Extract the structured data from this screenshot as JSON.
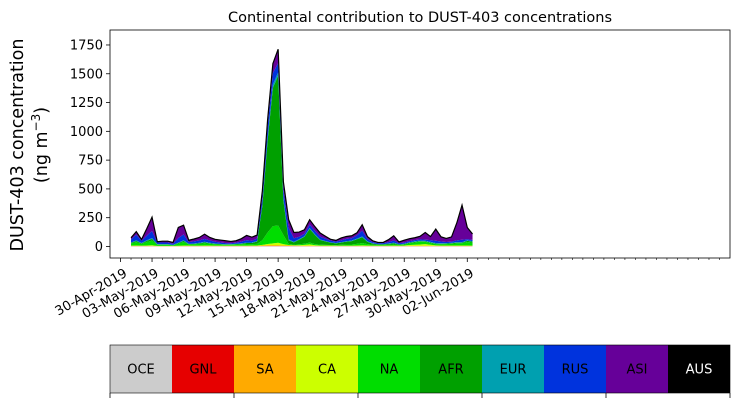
{
  "chart_data": {
    "type": "area",
    "title": "Continental contribution to DUST-403 concentrations",
    "ylabel_line1": "DUST-403 concentration",
    "ylabel_line2": "(ng m",
    "ylabel_sup": "−3",
    "ylabel_close": ")",
    "ylim": [
      -100,
      1880
    ],
    "yticks": [
      0,
      250,
      500,
      750,
      1000,
      1250,
      1500,
      1750
    ],
    "xlim": [
      -1,
      58
    ],
    "xticks": [
      0,
      3,
      6,
      9,
      12,
      15,
      18,
      21,
      24,
      27,
      30,
      33
    ],
    "xtick_labels": [
      "30-Apr-2019",
      "03-May-2019",
      "06-May-2019",
      "09-May-2019",
      "12-May-2019",
      "15-May-2019",
      "18-May-2019",
      "21-May-2019",
      "24-May-2019",
      "27-May-2019",
      "30-May-2019",
      "02-Jun-2019"
    ],
    "x": [
      1.0,
      1.5,
      2.0,
      2.5,
      3.0,
      3.5,
      4.0,
      4.5,
      5.0,
      5.5,
      6.0,
      6.5,
      7.0,
      7.5,
      8.0,
      8.5,
      9.0,
      9.5,
      10.0,
      10.5,
      11.0,
      11.5,
      12.0,
      12.5,
      13.0,
      13.5,
      14.0,
      14.5,
      15.0,
      15.5,
      16.0,
      16.5,
      17.0,
      17.5,
      18.0,
      18.5,
      19.0,
      19.5,
      20.0,
      20.5,
      21.0,
      21.5,
      22.0,
      22.5,
      23.0,
      23.5,
      24.0,
      24.5,
      25.0,
      25.5,
      26.0,
      26.5,
      27.0,
      27.5,
      28.0,
      28.5,
      29.0,
      29.5,
      30.0,
      30.5,
      31.0,
      31.5,
      32.0,
      32.5,
      33.0,
      33.5
    ],
    "series": [
      {
        "name": "OCE",
        "color": "#cccccc",
        "values": [
          2,
          2,
          2,
          2,
          2,
          1,
          1,
          1,
          1,
          1,
          2,
          2,
          2,
          2,
          2,
          2,
          2,
          2,
          2,
          2,
          2,
          2,
          2,
          2,
          2,
          3,
          3,
          3,
          3,
          3,
          3,
          3,
          2,
          2,
          2,
          2,
          2,
          2,
          2,
          2,
          2,
          2,
          2,
          2,
          2,
          2,
          2,
          2,
          2,
          2,
          2,
          2,
          2,
          2,
          2,
          2,
          2,
          2,
          2,
          2,
          2,
          2,
          2,
          2,
          2,
          2
        ]
      },
      {
        "name": "GNL",
        "color": "#e60000",
        "values": [
          1,
          1,
          1,
          1,
          1,
          1,
          1,
          1,
          1,
          1,
          1,
          1,
          1,
          1,
          1,
          1,
          1,
          1,
          1,
          1,
          1,
          1,
          1,
          1,
          1,
          1,
          1,
          1,
          1,
          1,
          1,
          1,
          1,
          1,
          1,
          1,
          1,
          1,
          1,
          1,
          1,
          1,
          1,
          1,
          1,
          1,
          1,
          1,
          1,
          1,
          1,
          1,
          1,
          1,
          1,
          1,
          1,
          1,
          1,
          1,
          1,
          1,
          1,
          1,
          1,
          1
        ]
      },
      {
        "name": "SA",
        "color": "#ffaa00",
        "values": [
          2,
          2,
          2,
          2,
          2,
          1,
          1,
          1,
          1,
          1,
          2,
          2,
          2,
          2,
          2,
          2,
          2,
          2,
          2,
          2,
          2,
          2,
          2,
          3,
          3,
          5,
          8,
          8,
          8,
          6,
          4,
          3,
          3,
          3,
          3,
          2,
          2,
          2,
          2,
          2,
          2,
          2,
          2,
          2,
          2,
          2,
          2,
          2,
          2,
          2,
          2,
          2,
          2,
          2,
          2,
          2,
          2,
          2,
          2,
          2,
          2,
          2,
          2,
          2,
          2,
          2
        ]
      },
      {
        "name": "CA",
        "color": "#ccff00",
        "values": [
          2,
          3,
          2,
          4,
          6,
          2,
          2,
          2,
          2,
          3,
          4,
          3,
          2,
          2,
          3,
          3,
          2,
          2,
          2,
          2,
          2,
          2,
          2,
          2,
          2,
          5,
          10,
          15,
          20,
          10,
          5,
          4,
          5,
          8,
          12,
          6,
          3,
          3,
          3,
          2,
          2,
          2,
          2,
          3,
          5,
          3,
          2,
          2,
          2,
          2,
          3,
          2,
          3,
          8,
          10,
          12,
          15,
          10,
          5,
          4,
          3,
          3,
          3,
          3,
          4,
          2
        ]
      },
      {
        "name": "NA",
        "color": "#00dd00",
        "values": [
          20,
          30,
          15,
          30,
          40,
          10,
          10,
          10,
          5,
          20,
          30,
          10,
          12,
          15,
          20,
          15,
          12,
          10,
          8,
          8,
          10,
          12,
          15,
          12,
          15,
          40,
          100,
          150,
          150,
          80,
          10,
          5,
          8,
          10,
          15,
          10,
          8,
          6,
          5,
          5,
          8,
          10,
          10,
          15,
          20,
          12,
          8,
          6,
          6,
          8,
          10,
          5,
          8,
          15,
          20,
          25,
          20,
          15,
          10,
          10,
          12,
          15,
          20,
          20,
          30,
          25
        ]
      },
      {
        "name": "AFR",
        "color": "#00a000",
        "values": [
          5,
          10,
          5,
          10,
          15,
          3,
          3,
          3,
          2,
          5,
          10,
          3,
          4,
          6,
          8,
          5,
          4,
          3,
          2,
          3,
          4,
          5,
          8,
          10,
          20,
          300,
          800,
          1200,
          1300,
          300,
          30,
          20,
          40,
          60,
          120,
          80,
          40,
          30,
          20,
          15,
          20,
          25,
          30,
          40,
          50,
          20,
          10,
          5,
          5,
          8,
          10,
          5,
          5,
          5,
          5,
          5,
          5,
          5,
          5,
          5,
          5,
          5,
          5,
          5,
          10,
          10
        ]
      },
      {
        "name": "EUR",
        "color": "#00a0b0",
        "values": [
          3,
          5,
          3,
          5,
          8,
          2,
          2,
          2,
          2,
          3,
          5,
          2,
          3,
          4,
          5,
          4,
          3,
          3,
          2,
          2,
          3,
          3,
          5,
          5,
          5,
          10,
          20,
          30,
          30,
          20,
          10,
          5,
          5,
          5,
          8,
          5,
          5,
          4,
          3,
          3,
          3,
          4,
          5,
          5,
          8,
          5,
          3,
          3,
          3,
          3,
          4,
          3,
          3,
          4,
          5,
          5,
          5,
          5,
          5,
          4,
          4,
          4,
          5,
          5,
          5,
          5
        ]
      },
      {
        "name": "RUS",
        "color": "#0033dd",
        "values": [
          25,
          50,
          20,
          40,
          60,
          15,
          15,
          15,
          10,
          40,
          50,
          15,
          18,
          20,
          25,
          20,
          15,
          12,
          10,
          8,
          10,
          15,
          20,
          15,
          20,
          60,
          100,
          100,
          80,
          80,
          100,
          30,
          20,
          20,
          30,
          30,
          25,
          20,
          15,
          12,
          15,
          20,
          20,
          30,
          50,
          20,
          10,
          8,
          8,
          12,
          20,
          8,
          10,
          10,
          10,
          10,
          10,
          15,
          20,
          15,
          10,
          10,
          15,
          20,
          10,
          10
        ]
      },
      {
        "name": "ASI",
        "color": "#660099",
        "values": [
          15,
          25,
          10,
          60,
          120,
          5,
          10,
          10,
          10,
          90,
          80,
          15,
          20,
          25,
          40,
          25,
          20,
          20,
          20,
          15,
          15,
          25,
          40,
          30,
          30,
          60,
          60,
          80,
          120,
          60,
          70,
          50,
          40,
          35,
          40,
          35,
          30,
          20,
          10,
          10,
          20,
          20,
          20,
          20,
          50,
          20,
          10,
          5,
          5,
          20,
          40,
          10,
          20,
          20,
          20,
          25,
          60,
          30,
          100,
          40,
          30,
          40,
          150,
          300,
          100,
          50
        ]
      },
      {
        "name": "AUS",
        "color": "#000000",
        "values": [
          1,
          1,
          1,
          1,
          1,
          1,
          1,
          1,
          1,
          1,
          1,
          1,
          1,
          1,
          1,
          1,
          1,
          1,
          1,
          1,
          1,
          1,
          1,
          1,
          1,
          1,
          1,
          1,
          1,
          1,
          1,
          1,
          1,
          1,
          1,
          1,
          1,
          1,
          1,
          1,
          1,
          1,
          1,
          1,
          1,
          1,
          1,
          1,
          1,
          1,
          1,
          1,
          1,
          1,
          1,
          1,
          1,
          1,
          1,
          1,
          1,
          1,
          1,
          1,
          1,
          1
        ]
      }
    ],
    "legend_position": "bottom (colour bar)"
  }
}
